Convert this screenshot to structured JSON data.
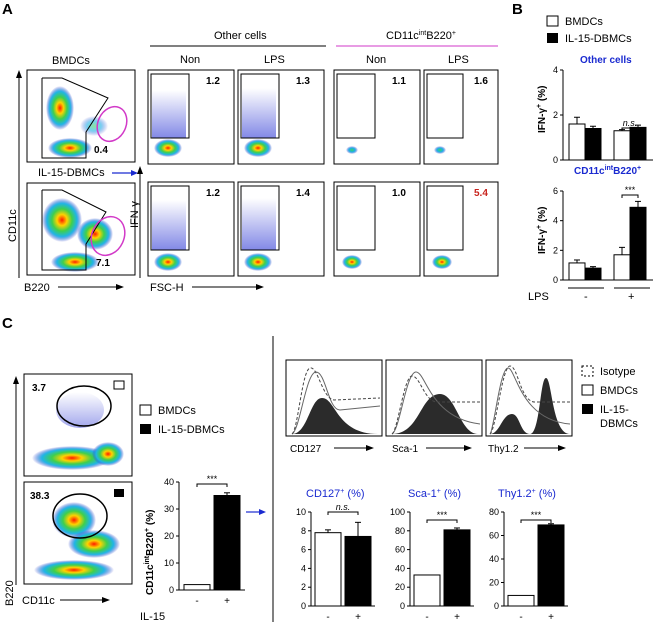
{
  "panels": {
    "A": "A",
    "B": "B",
    "C": "C"
  },
  "panelA": {
    "bmdcs": "BMDCs",
    "il15": "IL-15-DBMCs",
    "cd11c": "CD11c",
    "b220": "B220",
    "gate_top": "0.4",
    "gate_bottom": "7.1",
    "other_cells": "Other cells",
    "cd11c_int": "CD11c",
    "cd11c_int_sup": "int",
    "cd11c_b220": "B220",
    "cd11c_b220_sup": "+",
    "non": "Non",
    "lps": "LPS",
    "ifng": "IFN-γ",
    "fsch": "FSC-H",
    "values_top": [
      "1.2",
      "1.3",
      "1.1",
      "1.6"
    ],
    "values_bottom": [
      "1.2",
      "1.4",
      "1.0",
      "5.4"
    ]
  },
  "panelB": {
    "legend": [
      "BMDCs",
      "IL-15-DBMCs"
    ],
    "top_title": "Other cells",
    "bottom_title": "CD11c",
    "bottom_title_sup1": "int",
    "bottom_title_b": "B220",
    "bottom_title_sup2": "+",
    "ylabel": "IFN-γ",
    "ylabel_sup": "+",
    "ylabel_unit": " (%)",
    "ns": "n.s.",
    "sig": "***",
    "lps": "LPS",
    "minus": "-",
    "plus": "+"
  },
  "panelC": {
    "v1": "3.7",
    "v2": "38.3",
    "b220": "B220",
    "cd11c": "CD11c",
    "legend": [
      "BMDCs",
      "IL-15-DBMCs"
    ],
    "ylabel": "CD11c",
    "ylabel_sup1": "int",
    "ylabel_b": "B220",
    "ylabel_sup2": "+",
    "ylabel_unit": " (%)",
    "sig": "***",
    "il15": "IL-15",
    "minus": "-",
    "plus": "+",
    "hist_legend": [
      "Isotype",
      "BMDCs",
      "IL-15-DBMCs"
    ],
    "hist_labels": [
      "CD127",
      "Sca-1",
      "Thy1.2"
    ],
    "small_titles": [
      {
        "main": "CD127",
        "sup": "+",
        "unit": " (%)"
      },
      {
        "main": "Sca-1",
        "sup": "+",
        "unit": " (%)"
      },
      {
        "main": "Thy1.2",
        "sup": "+",
        "unit": " (%)"
      }
    ],
    "ns": "n.s."
  },
  "chart_data": [
    {
      "type": "bar",
      "categories": [
        "-",
        "+"
      ],
      "series": [
        {
          "name": "BMDCs",
          "values": [
            1.6,
            1.3
          ]
        },
        {
          "name": "IL-15-DBMCs",
          "values": [
            1.4,
            1.45
          ]
        }
      ],
      "ylim": [
        0,
        4
      ],
      "yticks": [
        "0",
        "2",
        "4"
      ]
    },
    {
      "type": "bar",
      "categories": [
        "-",
        "+"
      ],
      "series": [
        {
          "name": "BMDCs",
          "values": [
            1.15,
            1.7
          ]
        },
        {
          "name": "IL-15-DBMCs",
          "values": [
            0.8,
            4.9
          ]
        }
      ],
      "ylim": [
        0,
        6
      ],
      "yticks": [
        "0",
        "2",
        "4",
        "6"
      ]
    },
    {
      "type": "bar",
      "categories": [
        "-",
        "+"
      ],
      "values": [
        2.0,
        35.0
      ],
      "ylim": [
        0,
        40
      ],
      "yticks": [
        "0",
        "10",
        "20",
        "30",
        "40"
      ]
    },
    {
      "type": "bar",
      "categories": [
        "-",
        "+"
      ],
      "values": [
        7.8,
        7.4
      ],
      "ylim": [
        0,
        10
      ],
      "yticks": [
        "0",
        "2",
        "4",
        "6",
        "8",
        "10"
      ]
    },
    {
      "type": "bar",
      "categories": [
        "-",
        "+"
      ],
      "values": [
        33,
        81
      ],
      "ylim": [
        0,
        100
      ],
      "yticks": [
        "0",
        "20",
        "40",
        "60",
        "80",
        "100"
      ]
    },
    {
      "type": "bar",
      "categories": [
        "-",
        "+"
      ],
      "values": [
        9,
        69
      ],
      "ylim": [
        0,
        80
      ],
      "yticks": [
        "0",
        "20",
        "40",
        "60",
        "80"
      ]
    }
  ]
}
